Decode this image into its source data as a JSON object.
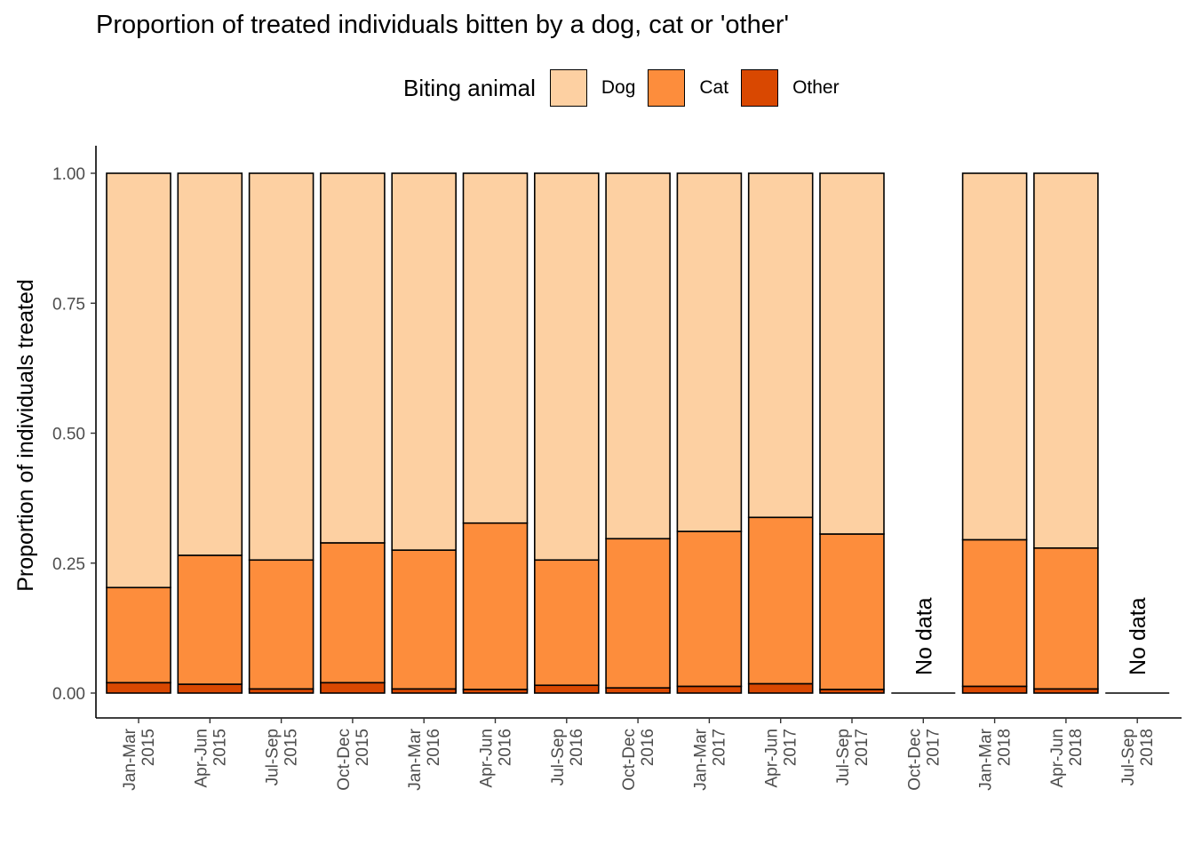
{
  "chart_data": {
    "type": "bar",
    "stacked": true,
    "title": "Proportion of treated individuals bitten by a dog, cat or 'other'",
    "ylabel": "Proportion of individuals treated",
    "xlabel": "",
    "ylim": [
      0,
      1.05
    ],
    "yticks": [
      "0.00",
      "0.25",
      "0.50",
      "0.75",
      "1.00"
    ],
    "legend": {
      "title": "Biting animal",
      "position": "top"
    },
    "categories": [
      [
        "Jan-Mar",
        "2015"
      ],
      [
        "Apr-Jun",
        "2015"
      ],
      [
        "Jul-Sep",
        "2015"
      ],
      [
        "Oct-Dec",
        "2015"
      ],
      [
        "Jan-Mar",
        "2016"
      ],
      [
        "Apr-Jun",
        "2016"
      ],
      [
        "Jul-Sep",
        "2016"
      ],
      [
        "Oct-Dec",
        "2016"
      ],
      [
        "Jan-Mar",
        "2017"
      ],
      [
        "Apr-Jun",
        "2017"
      ],
      [
        "Jul-Sep",
        "2017"
      ],
      [
        "Oct-Dec",
        "2017"
      ],
      [
        "Jan-Mar",
        "2018"
      ],
      [
        "Apr-Jun",
        "2018"
      ],
      [
        "Jul-Sep",
        "2018"
      ]
    ],
    "series": [
      {
        "name": "Dog",
        "color": "#FDD0A2",
        "values": [
          0.797,
          0.735,
          0.744,
          0.711,
          0.725,
          0.673,
          0.744,
          0.703,
          0.689,
          0.662,
          0.694,
          null,
          0.705,
          0.721,
          null
        ]
      },
      {
        "name": "Cat",
        "color": "#FD8D3C",
        "values": [
          0.183,
          0.248,
          0.248,
          0.269,
          0.267,
          0.32,
          0.241,
          0.287,
          0.298,
          0.32,
          0.299,
          null,
          0.282,
          0.271,
          null
        ]
      },
      {
        "name": "Other",
        "color": "#D94801",
        "values": [
          0.02,
          0.017,
          0.008,
          0.02,
          0.008,
          0.007,
          0.015,
          0.01,
          0.013,
          0.018,
          0.007,
          null,
          0.013,
          0.008,
          null
        ]
      }
    ],
    "annotations": [
      {
        "category_index": 11,
        "text": "No data"
      },
      {
        "category_index": 14,
        "text": "No data"
      }
    ],
    "grid": false
  }
}
